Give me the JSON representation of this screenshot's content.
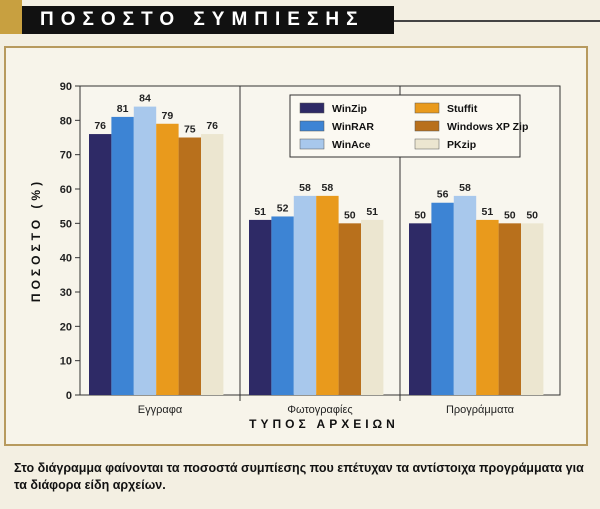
{
  "header": {
    "title": "ΠΟΣΟΣΤΟ ΣΥΜΠΙΕΣΗΣ"
  },
  "caption": "Στο διάγραμμα φαίνονται τα ποσοστά συμπίεσης που επέτυχαν τα αντίστοιχα προγράμματα για τα διάφορα είδη αρχείων.",
  "colors": {
    "WinZip": "#2e2a66",
    "WinRAR": "#3d84d4",
    "WinAce": "#a8c8ec",
    "Stuffit": "#e99a1c",
    "Windows XP Zip": "#b8701c",
    "PKzip": "#ece6d0"
  },
  "chart_data": {
    "type": "bar",
    "title": "ΠΟΣΟΣΤΟ ΣΥΜΠΙΕΣΗΣ",
    "xlabel": "ΤΥΠΟΣ ΑΡΧΕΙΩΝ",
    "ylabel": "ΠΟΣΟΣΤΟ (%)",
    "ylim": [
      0,
      90
    ],
    "yticks": [
      0,
      10,
      20,
      30,
      40,
      50,
      60,
      70,
      80,
      90
    ],
    "categories": [
      "Εγγραφα",
      "Φωτογραφίες",
      "Προγράμματα"
    ],
    "series": [
      {
        "name": "WinZip",
        "values": [
          76,
          51,
          50
        ]
      },
      {
        "name": "WinRAR",
        "values": [
          81,
          52,
          56
        ]
      },
      {
        "name": "WinAce",
        "values": [
          84,
          58,
          58
        ]
      },
      {
        "name": "Stuffit",
        "values": [
          79,
          58,
          51
        ]
      },
      {
        "name": "Windows XP Zip",
        "values": [
          75,
          50,
          50
        ]
      },
      {
        "name": "PKzip",
        "values": [
          76,
          51,
          50
        ]
      }
    ],
    "legend_order": [
      "WinZip",
      "Stuffit",
      "WinRAR",
      "Windows XP Zip",
      "WinAce",
      "PKzip"
    ],
    "legend_position": "top-right",
    "grid": "vertical category separators"
  }
}
